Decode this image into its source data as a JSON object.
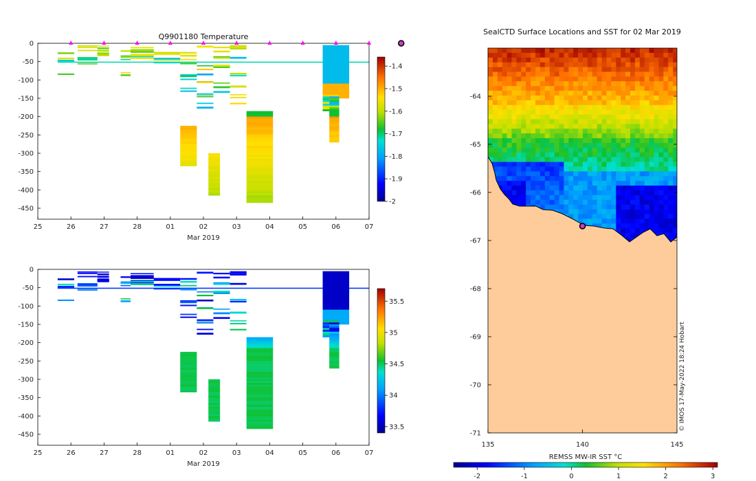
{
  "chart_data": [
    {
      "type": "heatmap",
      "title": "Q9901180  Temperature",
      "xlabel": "Mar 2019",
      "x_ticks": [
        "25",
        "26",
        "27",
        "28",
        "01",
        "02",
        "03",
        "04",
        "05",
        "06",
        "07"
      ],
      "y_ticks": [
        "0",
        "-50",
        "-100",
        "-150",
        "-200",
        "-250",
        "-300",
        "-350",
        "-400",
        "-450"
      ],
      "ylim": [
        -480,
        0
      ],
      "colorbar_ticks": [
        "-1.4",
        "-1.5",
        "-1.6",
        "-1.7",
        "-1.8",
        "-1.9",
        "-2"
      ],
      "clim": [
        -2.0,
        -1.36
      ],
      "profile_markers_day": [
        26,
        27,
        28,
        29,
        30,
        31,
        32,
        33,
        34,
        35
      ],
      "current_marker_day": 35.97
    },
    {
      "type": "heatmap",
      "title": "",
      "xlabel": "Mar 2019",
      "x_ticks": [
        "25",
        "26",
        "27",
        "28",
        "01",
        "02",
        "03",
        "04",
        "05",
        "06",
        "07"
      ],
      "y_ticks": [
        "0",
        "-50",
        "-100",
        "-150",
        "-200",
        "-250",
        "-300",
        "-350",
        "-400",
        "-450"
      ],
      "ylim": [
        -480,
        0
      ],
      "colorbar_ticks": [
        "35.5",
        "35",
        "34.5",
        "34",
        "33.5"
      ],
      "clim": [
        33.4,
        35.7
      ]
    },
    {
      "type": "heatmap",
      "title": "SealCTD Surface Locations and SST for 02 Mar 2019",
      "xlabel": "",
      "x_ticks": [
        "135",
        "140",
        "145"
      ],
      "y_ticks": [
        "-64",
        "-65",
        "-66",
        "-67",
        "-68",
        "-69",
        "-70",
        "-71"
      ],
      "xlim": [
        135,
        145
      ],
      "ylim": [
        -71,
        -63
      ],
      "colorbar_label": "REMSS MW-IR SST °C",
      "colorbar_ticks": [
        "-2",
        "-1",
        "0",
        "1",
        "2",
        "3"
      ],
      "clim": [
        -2.5,
        3.1
      ],
      "seal_position": {
        "lon": 140.0,
        "lat": -66.7
      },
      "credit": "© IMOS 17-May-2022 18:24 Hobart"
    }
  ]
}
